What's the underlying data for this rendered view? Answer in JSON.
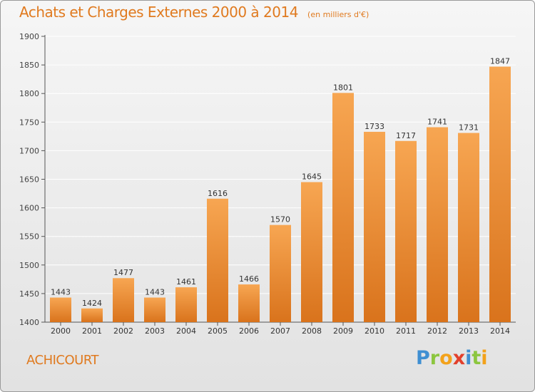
{
  "title": "Achats et Charges Externes 2000 à 2014",
  "subtitle": "(en milliers d'€)",
  "commune": "ACHICOURT",
  "logo": {
    "letters": [
      "P",
      "r",
      "o",
      "x",
      "i",
      "t",
      "i"
    ],
    "colors": [
      "#3f8fd2",
      "#8cc63f",
      "#f3a21b",
      "#e2402c",
      "#3f8fd2",
      "#8cc63f",
      "#f3a21b"
    ]
  },
  "colors": {
    "bar_top": "#f7a652",
    "bar_bottom": "#d9731c",
    "title": "#e07a1f",
    "grid": "#ffffff"
  },
  "chart_data": {
    "type": "bar",
    "title": "Achats et Charges Externes 2000 à 2014",
    "subtitle": "(en milliers d'€)",
    "categories": [
      "2000",
      "2001",
      "2002",
      "2003",
      "2004",
      "2005",
      "2006",
      "2007",
      "2008",
      "2009",
      "2010",
      "2011",
      "2012",
      "2013",
      "2014"
    ],
    "values": [
      1443,
      1424,
      1477,
      1443,
      1461,
      1616,
      1466,
      1570,
      1645,
      1801,
      1733,
      1717,
      1741,
      1731,
      1847
    ],
    "ylim": [
      1400,
      1900
    ],
    "yticks": [
      1400,
      1450,
      1500,
      1550,
      1600,
      1650,
      1700,
      1750,
      1800,
      1850,
      1900
    ],
    "grid": true,
    "legend": "none"
  }
}
